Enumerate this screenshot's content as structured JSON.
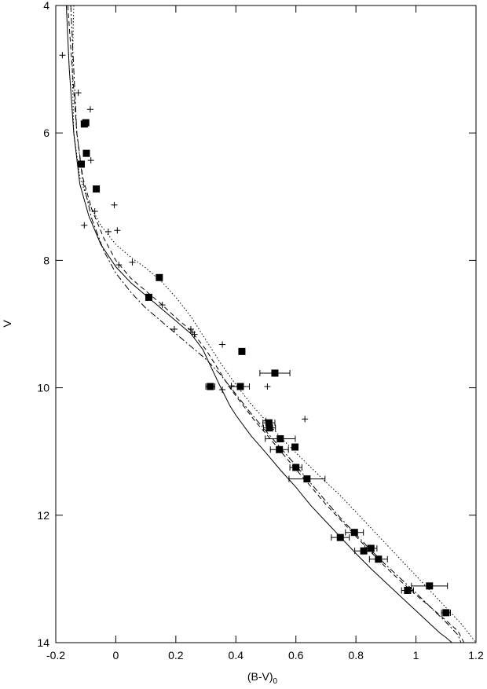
{
  "chart_data": {
    "type": "scatter",
    "title": "",
    "xlabel": "(B-V)",
    "xlabel_sub": "0",
    "ylabel": "V",
    "xlim": [
      -0.2,
      1.2
    ],
    "ylim": [
      4,
      14
    ],
    "y_inverted": true,
    "grid": false,
    "legend": "none",
    "x_ticks": [
      -0.2,
      0,
      0.2,
      0.4,
      0.6,
      0.8,
      1,
      1.2
    ],
    "x_tick_labels": [
      "-0.2",
      "0",
      "0.2",
      "0.4",
      "0.6",
      "0.8",
      "1",
      "1.2"
    ],
    "y_ticks": [
      4,
      6,
      8,
      10,
      12,
      14
    ],
    "y_tick_labels": [
      "4",
      "6",
      "8",
      "10",
      "12",
      "14"
    ],
    "color": "#000000",
    "square_points": [
      {
        "x": -0.105,
        "y": 5.86
      },
      {
        "x": -0.1,
        "y": 5.84
      },
      {
        "x": -0.098,
        "y": 6.32
      },
      {
        "x": -0.115,
        "y": 6.49
      },
      {
        "x": -0.065,
        "y": 6.88
      },
      {
        "x": 0.145,
        "y": 8.27
      },
      {
        "x": 0.11,
        "y": 8.58
      },
      {
        "x": 0.42,
        "y": 9.43
      },
      {
        "x": 0.53,
        "y": 9.77,
        "xerr": 0.05
      },
      {
        "x": 0.315,
        "y": 9.98,
        "xerr": 0.015
      },
      {
        "x": 0.415,
        "y": 9.98,
        "xerr": 0.03
      },
      {
        "x": 0.51,
        "y": 10.55,
        "xerr": 0.02
      },
      {
        "x": 0.512,
        "y": 10.63,
        "xerr": 0.02
      },
      {
        "x": 0.548,
        "y": 10.8,
        "xerr": 0.05
      },
      {
        "x": 0.597,
        "y": 10.93
      },
      {
        "x": 0.545,
        "y": 10.97,
        "xerr": 0.03
      },
      {
        "x": 0.6,
        "y": 11.25,
        "xerr": 0.02
      },
      {
        "x": 0.637,
        "y": 11.43,
        "xerr": 0.06
      },
      {
        "x": 0.795,
        "y": 12.27,
        "xerr": 0.03
      },
      {
        "x": 0.748,
        "y": 12.35,
        "xerr": 0.03
      },
      {
        "x": 0.85,
        "y": 12.52,
        "xerr": 0.02
      },
      {
        "x": 0.826,
        "y": 12.56,
        "xerr": 0.03
      },
      {
        "x": 0.875,
        "y": 12.69,
        "xerr": 0.03
      },
      {
        "x": 1.045,
        "y": 13.11,
        "xerr": 0.06
      },
      {
        "x": 0.972,
        "y": 13.18,
        "xerr": 0.02
      },
      {
        "x": 1.1,
        "y": 13.53,
        "xerr": 0.015
      }
    ],
    "plus_points": [
      {
        "x": -0.178,
        "y": 4.78
      },
      {
        "x": -0.125,
        "y": 5.37
      },
      {
        "x": -0.085,
        "y": 5.63
      },
      {
        "x": -0.083,
        "y": 6.43
      },
      {
        "x": -0.07,
        "y": 7.23
      },
      {
        "x": -0.005,
        "y": 7.13
      },
      {
        "x": -0.105,
        "y": 7.45
      },
      {
        "x": -0.025,
        "y": 7.55
      },
      {
        "x": 0.005,
        "y": 7.53
      },
      {
        "x": 0.01,
        "y": 8.07
      },
      {
        "x": 0.055,
        "y": 8.03
      },
      {
        "x": 0.155,
        "y": 8.7
      },
      {
        "x": 0.195,
        "y": 9.08
      },
      {
        "x": 0.25,
        "y": 9.08
      },
      {
        "x": 0.255,
        "y": 9.13
      },
      {
        "x": 0.262,
        "y": 9.16
      },
      {
        "x": 0.355,
        "y": 9.32
      },
      {
        "x": 0.32,
        "y": 9.98
      },
      {
        "x": 0.355,
        "y": 10.03
      },
      {
        "x": 0.385,
        "y": 9.97
      },
      {
        "x": 0.505,
        "y": 9.98
      },
      {
        "x": 0.63,
        "y": 10.49
      },
      {
        "x": 0.5,
        "y": 10.52
      }
    ],
    "series": [
      {
        "style": "solid",
        "x": [
          -0.165,
          -0.155,
          -0.14,
          -0.12,
          -0.09,
          -0.05,
          0.0,
          0.05,
          0.1,
          0.15,
          0.2,
          0.25,
          0.29,
          0.32,
          0.35,
          0.38,
          0.4,
          0.45,
          0.5,
          0.55,
          0.6,
          0.65,
          0.7,
          0.75,
          0.8,
          0.85,
          0.9,
          0.95,
          1.0,
          1.05,
          1.08,
          1.1,
          1.12
        ],
        "y": [
          4.0,
          5.0,
          6.0,
          6.8,
          7.3,
          7.75,
          8.1,
          8.35,
          8.55,
          8.75,
          8.95,
          9.15,
          9.4,
          9.7,
          10.0,
          10.28,
          10.43,
          10.75,
          11.02,
          11.3,
          11.56,
          11.85,
          12.1,
          12.35,
          12.6,
          12.84,
          13.06,
          13.28,
          13.5,
          13.72,
          13.85,
          13.92,
          14.0
        ]
      },
      {
        "style": "dashed",
        "x": [
          -0.16,
          -0.145,
          -0.13,
          -0.11,
          -0.08,
          -0.04,
          0.0,
          0.05,
          0.1,
          0.15,
          0.2,
          0.25,
          0.3,
          0.34,
          0.38,
          0.42,
          0.46,
          0.5,
          0.55,
          0.6,
          0.65,
          0.7,
          0.75,
          0.8,
          0.85,
          0.9,
          0.95,
          1.0,
          1.05,
          1.1,
          1.14,
          1.16
        ],
        "y": [
          4.0,
          5.0,
          6.0,
          6.7,
          7.2,
          7.65,
          8.0,
          8.28,
          8.48,
          8.68,
          8.9,
          9.1,
          9.4,
          9.7,
          10.0,
          10.25,
          10.5,
          10.72,
          11.0,
          11.28,
          11.55,
          11.83,
          12.08,
          12.33,
          12.58,
          12.82,
          13.04,
          13.25,
          13.45,
          13.65,
          13.82,
          14.0
        ]
      },
      {
        "style": "dashdot",
        "x": [
          -0.15,
          -0.14,
          -0.13,
          -0.11,
          -0.08,
          -0.04,
          0.0,
          0.05,
          0.1,
          0.15,
          0.2,
          0.25,
          0.3,
          0.35,
          0.4,
          0.45,
          0.5,
          0.55,
          0.6,
          0.65,
          0.7,
          0.75,
          0.8,
          0.85,
          0.9,
          0.95,
          1.0,
          1.05,
          1.1,
          1.14,
          1.15
        ],
        "y": [
          4.0,
          5.0,
          6.0,
          6.75,
          7.35,
          7.85,
          8.2,
          8.5,
          8.75,
          8.95,
          9.15,
          9.35,
          9.55,
          9.8,
          10.1,
          10.4,
          10.68,
          10.95,
          11.22,
          11.5,
          11.78,
          12.05,
          12.3,
          12.55,
          12.78,
          13.0,
          13.22,
          13.45,
          13.68,
          13.88,
          14.0
        ]
      },
      {
        "style": "dotted",
        "x": [
          -0.14,
          -0.145,
          -0.14,
          -0.12,
          -0.09,
          -0.05,
          0.0,
          0.05,
          0.1,
          0.15,
          0.2,
          0.25,
          0.3,
          0.35,
          0.4,
          0.45,
          0.5,
          0.55,
          0.6,
          0.65,
          0.7,
          0.75,
          0.8,
          0.85,
          0.9,
          0.95,
          1.0,
          1.05,
          1.1,
          1.15,
          1.2
        ],
        "y": [
          4.0,
          5.0,
          6.0,
          6.7,
          7.1,
          7.45,
          7.75,
          7.95,
          8.12,
          8.32,
          8.58,
          8.88,
          9.25,
          9.62,
          9.95,
          10.25,
          10.52,
          10.78,
          11.02,
          11.25,
          11.48,
          11.7,
          11.95,
          12.2,
          12.45,
          12.7,
          12.95,
          13.2,
          13.45,
          13.7,
          14.0
        ]
      }
    ]
  }
}
